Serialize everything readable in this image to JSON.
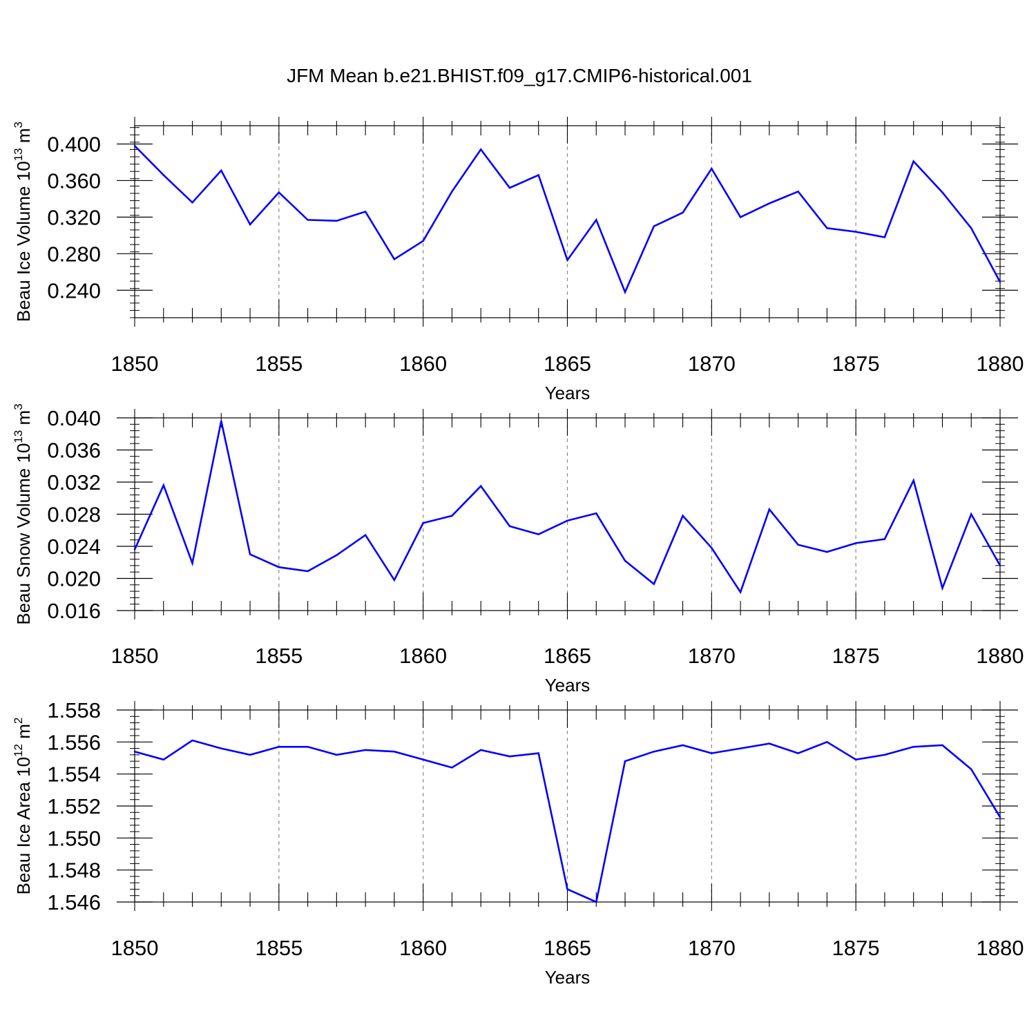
{
  "title": "JFM Mean b.e21.BHIST.f09_g17.CMIP6-historical.001",
  "chart_data": [
    {
      "type": "line",
      "id": "ice-volume",
      "ylabel_main": "Beau Ice Volume 10",
      "ylabel_exp": "13",
      "ylabel_unit": " m",
      "ylabel_unit_exp": "3",
      "xlabel": "Years",
      "xlim": [
        1850,
        1880
      ],
      "ylim": [
        0.21,
        0.42
      ],
      "yticks": [
        0.24,
        0.28,
        0.32,
        0.36,
        0.4
      ],
      "ytick_labels": [
        "0.240",
        "0.280",
        "0.320",
        "0.360",
        "0.400"
      ],
      "xticks": [
        1850,
        1855,
        1860,
        1865,
        1870,
        1875,
        1880
      ],
      "xtick_labels": [
        "1850",
        "1855",
        "1860",
        "1865",
        "1870",
        "1875",
        "1880"
      ],
      "grid_x": [
        1855,
        1860,
        1865,
        1870,
        1875
      ],
      "color": "#0000ff",
      "x": [
        1850,
        1851,
        1852,
        1853,
        1854,
        1855,
        1856,
        1857,
        1858,
        1859,
        1860,
        1861,
        1862,
        1863,
        1864,
        1865,
        1866,
        1867,
        1868,
        1869,
        1870,
        1871,
        1872,
        1873,
        1874,
        1875,
        1876,
        1877,
        1878,
        1879,
        1880
      ],
      "values": [
        0.398,
        0.366,
        0.336,
        0.371,
        0.312,
        0.347,
        0.317,
        0.316,
        0.326,
        0.274,
        0.294,
        0.348,
        0.394,
        0.352,
        0.366,
        0.273,
        0.317,
        0.238,
        0.31,
        0.325,
        0.373,
        0.32,
        0.335,
        0.348,
        0.308,
        0.304,
        0.298,
        0.381,
        0.347,
        0.308,
        0.249
      ]
    },
    {
      "type": "line",
      "id": "snow-volume",
      "ylabel_main": "Beau Snow Volume 10",
      "ylabel_exp": "13",
      "ylabel_unit": " m",
      "ylabel_unit_exp": "3",
      "xlabel": "Years",
      "xlim": [
        1850,
        1880
      ],
      "ylim": [
        0.016,
        0.04
      ],
      "yticks": [
        0.016,
        0.02,
        0.024,
        0.028,
        0.032,
        0.036,
        0.04
      ],
      "ytick_labels": [
        "0.016",
        "0.020",
        "0.024",
        "0.028",
        "0.032",
        "0.036",
        "0.040"
      ],
      "xticks": [
        1850,
        1855,
        1860,
        1865,
        1870,
        1875,
        1880
      ],
      "xtick_labels": [
        "1850",
        "1855",
        "1860",
        "1865",
        "1870",
        "1875",
        "1880"
      ],
      "grid_x": [
        1855,
        1860,
        1865,
        1870,
        1875
      ],
      "color": "#0000ff",
      "x": [
        1850,
        1851,
        1852,
        1853,
        1854,
        1855,
        1856,
        1857,
        1858,
        1859,
        1860,
        1861,
        1862,
        1863,
        1864,
        1865,
        1866,
        1867,
        1868,
        1869,
        1870,
        1871,
        1872,
        1873,
        1874,
        1875,
        1876,
        1877,
        1878,
        1879,
        1880
      ],
      "values": [
        0.0236,
        0.0316,
        0.0219,
        0.0396,
        0.023,
        0.0214,
        0.0209,
        0.0229,
        0.0254,
        0.0198,
        0.0269,
        0.0278,
        0.0315,
        0.0265,
        0.0255,
        0.0272,
        0.0281,
        0.0222,
        0.0193,
        0.0278,
        0.0238,
        0.0183,
        0.0286,
        0.0242,
        0.0233,
        0.0244,
        0.0249,
        0.0322,
        0.0188,
        0.028,
        0.0216
      ]
    },
    {
      "type": "line",
      "id": "ice-area",
      "ylabel_main": "Beau Ice Area 10",
      "ylabel_exp": "12",
      "ylabel_unit": " m",
      "ylabel_unit_exp": "2",
      "xlabel": "Years",
      "xlim": [
        1850,
        1880
      ],
      "ylim": [
        1.546,
        1.558
      ],
      "yticks": [
        1.546,
        1.548,
        1.55,
        1.552,
        1.554,
        1.556,
        1.558
      ],
      "ytick_labels": [
        "1.546",
        "1.548",
        "1.550",
        "1.552",
        "1.554",
        "1.556",
        "1.558"
      ],
      "xticks": [
        1850,
        1855,
        1860,
        1865,
        1870,
        1875,
        1880
      ],
      "xtick_labels": [
        "1850",
        "1855",
        "1860",
        "1865",
        "1870",
        "1875",
        "1880"
      ],
      "grid_x": [
        1855,
        1860,
        1865,
        1870,
        1875
      ],
      "color": "#0000ff",
      "x": [
        1850,
        1851,
        1852,
        1853,
        1854,
        1855,
        1856,
        1857,
        1858,
        1859,
        1860,
        1861,
        1862,
        1863,
        1864,
        1865,
        1866,
        1867,
        1868,
        1869,
        1870,
        1871,
        1872,
        1873,
        1874,
        1875,
        1876,
        1877,
        1878,
        1879,
        1880
      ],
      "values": [
        1.5554,
        1.5549,
        1.5561,
        1.5556,
        1.5552,
        1.5557,
        1.5557,
        1.5552,
        1.5555,
        1.5554,
        1.5549,
        1.5544,
        1.5555,
        1.5551,
        1.5553,
        1.5468,
        1.546,
        1.5548,
        1.5554,
        1.5558,
        1.5553,
        1.5556,
        1.5559,
        1.5553,
        1.556,
        1.5549,
        1.5552,
        1.5557,
        1.5558,
        1.5543,
        1.5513
      ]
    }
  ]
}
